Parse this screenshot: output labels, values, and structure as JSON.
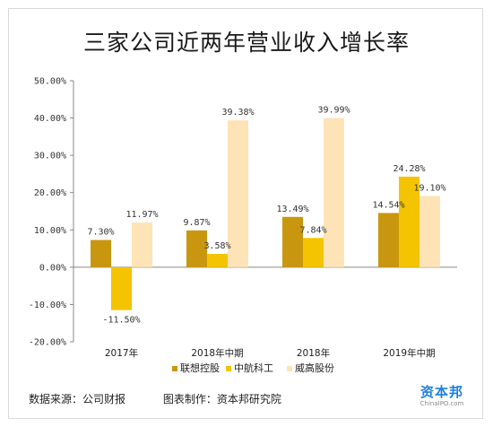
{
  "title": "三家公司近两年营业收入增长率",
  "footer": {
    "source": "数据来源：公司财报",
    "maker": "图表制作：资本邦研究院"
  },
  "logo": {
    "name": "资本邦",
    "url": "ChinaIPO.com"
  },
  "chart_data": {
    "type": "bar",
    "title": "三家公司近两年营业收入增长率",
    "categories": [
      "2017年",
      "2018年中期",
      "2018年",
      "2019年中期"
    ],
    "series": [
      {
        "name": "联想控股",
        "color": "#c9970f",
        "values": [
          7.3,
          9.87,
          13.49,
          14.54
        ],
        "labels": [
          "7.30%",
          "9.87%",
          "13.49%",
          "14.54%"
        ]
      },
      {
        "name": "中航科工",
        "color": "#f5c400",
        "values": [
          -11.5,
          3.58,
          7.84,
          24.28
        ],
        "labels": [
          "-11.50%",
          "3.58%",
          "7.84%",
          "24.28%"
        ]
      },
      {
        "name": "威高股份",
        "color": "#fde3b6",
        "values": [
          11.97,
          39.38,
          39.99,
          19.1
        ],
        "labels": [
          "11.97%",
          "39.38%",
          "39.99%",
          "19.10%"
        ]
      }
    ],
    "ylim": [
      -20,
      50
    ],
    "yticks": [
      "-20.00%",
      "-10.00%",
      "0.00%",
      "10.00%",
      "20.00%",
      "30.00%",
      "40.00%",
      "50.00%"
    ],
    "legend_position": "bottom",
    "grid": false
  }
}
